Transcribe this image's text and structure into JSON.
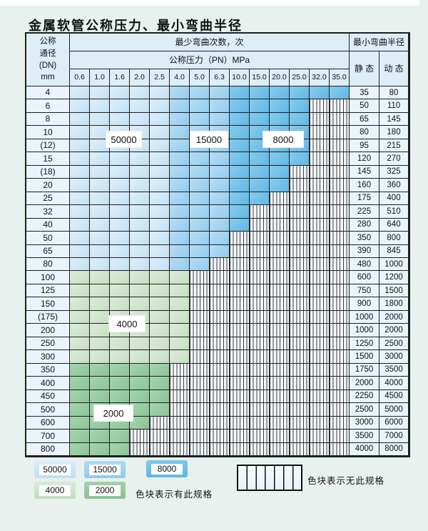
{
  "title": "金属软管公称压力、最小弯曲半径",
  "colors": {
    "blue1": "#cde7f8",
    "blue2": "#a3d4f1",
    "blue3": "#72c1e9",
    "green1": "#d2e6cf",
    "green2": "#98cda3",
    "header_bg": "#ddeef9",
    "label_bg": "#e9f4fc",
    "grid_line": "#1f1f1f",
    "page_bg": "#e8f1ee"
  },
  "table": {
    "corner_lines": "公称\n通径\n(DN)\nmm",
    "bend_cycles_header": "最少弯曲次数，次",
    "pressure_header": "公称压力（PN）MPa",
    "pressures": [
      "0.6",
      "1.0",
      "1.6",
      "2.0",
      "2.5",
      "4.0",
      "5.0",
      "6.3",
      "10.0",
      "15.0",
      "20.0",
      "25.0",
      "32.0",
      "35.0"
    ],
    "radius_header": "最小弯曲半径",
    "static_header": "静 态",
    "dynamic_header": "动 态",
    "rows": [
      {
        "dn": "4",
        "colored": 14,
        "band": "blue",
        "static": "35",
        "dynamic": "80"
      },
      {
        "dn": "6",
        "colored": 12,
        "band": "blue",
        "static": "50",
        "dynamic": "110"
      },
      {
        "dn": "8",
        "colored": 12,
        "band": "blue",
        "static": "65",
        "dynamic": "145"
      },
      {
        "dn": "10",
        "colored": 12,
        "band": "blue",
        "static": "80",
        "dynamic": "180"
      },
      {
        "dn": "(12)",
        "colored": 12,
        "band": "blue",
        "static": "95",
        "dynamic": "215"
      },
      {
        "dn": "15",
        "colored": 12,
        "band": "blue",
        "static": "120",
        "dynamic": "270"
      },
      {
        "dn": "(18)",
        "colored": 11,
        "band": "blue",
        "static": "145",
        "dynamic": "325"
      },
      {
        "dn": "20",
        "colored": 11,
        "band": "blue",
        "static": "160",
        "dynamic": "360"
      },
      {
        "dn": "25",
        "colored": 10,
        "band": "blue",
        "static": "175",
        "dynamic": "400"
      },
      {
        "dn": "32",
        "colored": 9,
        "band": "blue",
        "static": "225",
        "dynamic": "510"
      },
      {
        "dn": "40",
        "colored": 9,
        "band": "blue",
        "static": "280",
        "dynamic": "640"
      },
      {
        "dn": "50",
        "colored": 8,
        "band": "blue",
        "static": "350",
        "dynamic": "800"
      },
      {
        "dn": "65",
        "colored": 8,
        "band": "blue",
        "static": "390",
        "dynamic": "845"
      },
      {
        "dn": "80",
        "colored": 7,
        "band": "blue",
        "static": "480",
        "dynamic": "1000"
      },
      {
        "dn": "100",
        "colored": 6,
        "band": "green-light",
        "static": "600",
        "dynamic": "1200"
      },
      {
        "dn": "125",
        "colored": 6,
        "band": "green-light",
        "static": "750",
        "dynamic": "1500"
      },
      {
        "dn": "150",
        "colored": 6,
        "band": "green-light",
        "static": "900",
        "dynamic": "1800"
      },
      {
        "dn": "(175)",
        "colored": 6,
        "band": "green-light",
        "static": "1000",
        "dynamic": "2000"
      },
      {
        "dn": "200",
        "colored": 6,
        "band": "green-light",
        "static": "1000",
        "dynamic": "2000"
      },
      {
        "dn": "250",
        "colored": 6,
        "band": "green-light",
        "static": "1250",
        "dynamic": "2500"
      },
      {
        "dn": "300",
        "colored": 6,
        "band": "green-light",
        "static": "1500",
        "dynamic": "3000"
      },
      {
        "dn": "350",
        "colored": 5,
        "band": "green-dark",
        "static": "1750",
        "dynamic": "3500"
      },
      {
        "dn": "400",
        "colored": 5,
        "band": "green-dark",
        "static": "2000",
        "dynamic": "4000"
      },
      {
        "dn": "450",
        "colored": 5,
        "band": "green-dark",
        "static": "2250",
        "dynamic": "4500"
      },
      {
        "dn": "500",
        "colored": 5,
        "band": "green-dark",
        "static": "2500",
        "dynamic": "5000"
      },
      {
        "dn": "600",
        "colored": 4,
        "band": "green-dark",
        "static": "3000",
        "dynamic": "6000"
      },
      {
        "dn": "700",
        "colored": 3,
        "band": "green-dark",
        "static": "3500",
        "dynamic": "7000"
      },
      {
        "dn": "800",
        "colored": 3,
        "band": "green-dark",
        "static": "4000",
        "dynamic": "8000"
      }
    ]
  },
  "overlays": [
    {
      "text": "50000"
    },
    {
      "text": "15000"
    },
    {
      "text": "8000"
    },
    {
      "text": "4000"
    },
    {
      "text": "2000"
    }
  ],
  "legend": {
    "items": [
      {
        "label": "50000"
      },
      {
        "label": "15000"
      },
      {
        "label": "8000"
      },
      {
        "label": "4000"
      },
      {
        "label": "2000"
      }
    ],
    "available_note": "色块表示有此规格",
    "unavailable_note": "色块表示无此规格"
  }
}
